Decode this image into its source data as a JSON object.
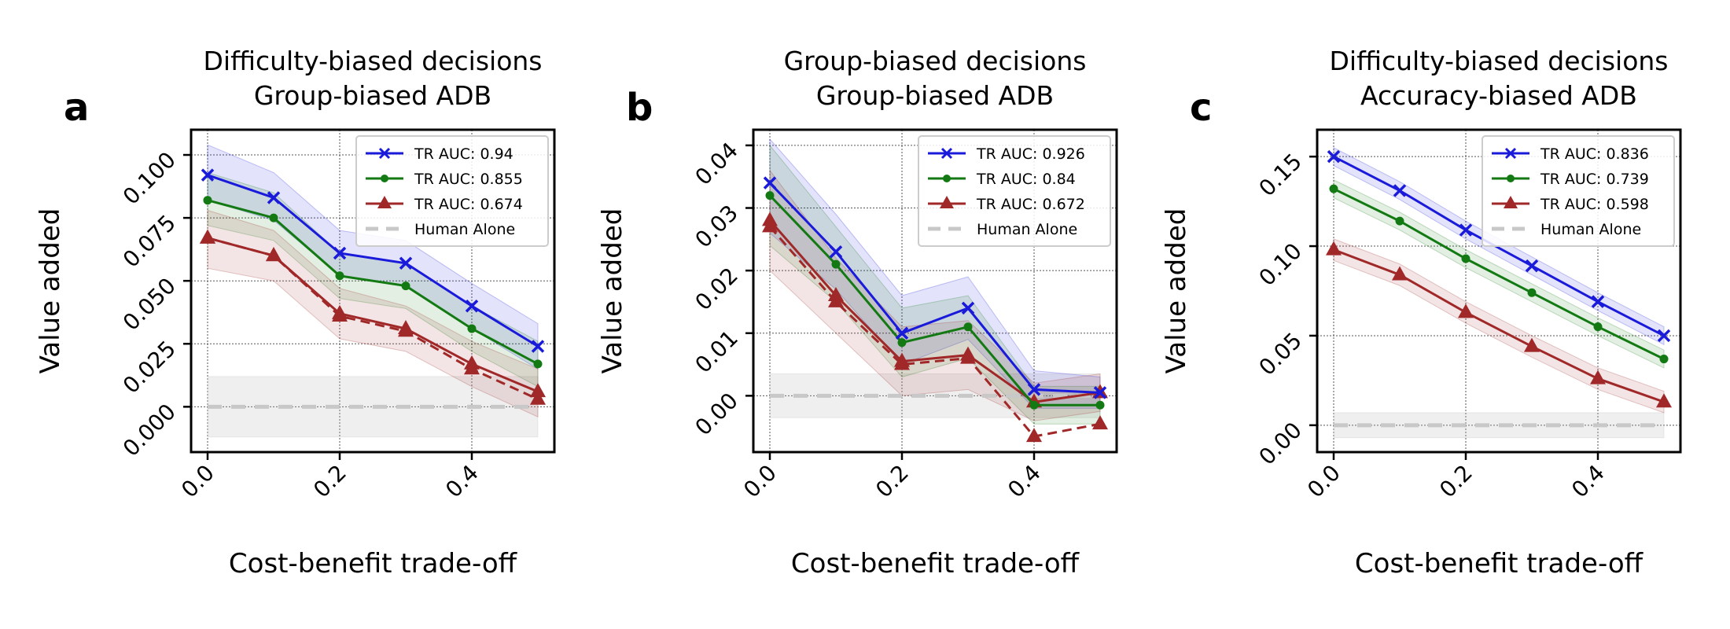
{
  "figure": {
    "xlabel": "Cost-benefit trade-off",
    "ylabel": "Value added",
    "colors": {
      "s0": "#1a1adb",
      "s1": "#137a13",
      "s2": "#a02828",
      "human": "#c8c8c8",
      "grid": "#555555"
    }
  },
  "chart_data": [
    {
      "type": "line",
      "panel_label": "a",
      "title_line1": "Difficulty-biased decisions",
      "title_line2": "Group-biased ADB",
      "xlabel": "Cost-benefit trade-off",
      "ylabel": "Value added",
      "xlim": [
        -0.025,
        0.525
      ],
      "ylim": [
        -0.018,
        0.11
      ],
      "xticks": [
        0.0,
        0.2,
        0.4
      ],
      "xtick_labels": [
        "0.0",
        "0.2",
        "0.4"
      ],
      "yticks": [
        0.0,
        0.025,
        0.05,
        0.075,
        0.1
      ],
      "ytick_labels": [
        "0.000",
        "0.025",
        "0.050",
        "0.075",
        "0.100"
      ],
      "x": [
        0.0,
        0.1,
        0.2,
        0.3,
        0.4,
        0.5
      ],
      "series": [
        {
          "name": "TR AUC: 0.94",
          "marker": "x",
          "values": [
            0.092,
            0.083,
            0.061,
            0.057,
            0.04,
            0.024
          ],
          "lower": [
            0.082,
            0.074,
            0.052,
            0.048,
            0.031,
            0.015
          ],
          "upper": [
            0.104,
            0.093,
            0.07,
            0.066,
            0.049,
            0.033
          ]
        },
        {
          "name": "TR AUC: 0.855",
          "marker": "dot",
          "values": [
            0.082,
            0.075,
            0.052,
            0.048,
            0.031,
            0.017
          ],
          "lower": [
            0.072,
            0.066,
            0.043,
            0.039,
            0.022,
            0.008
          ],
          "upper": [
            0.093,
            0.085,
            0.061,
            0.057,
            0.04,
            0.026
          ]
        },
        {
          "name": "TR AUC: 0.674",
          "marker": "triangle",
          "values": [
            0.067,
            0.06,
            0.037,
            0.031,
            0.017,
            0.006
          ],
          "lower": [
            0.055,
            0.05,
            0.027,
            0.022,
            0.008,
            -0.004
          ],
          "upper": [
            0.078,
            0.07,
            0.047,
            0.04,
            0.026,
            0.015
          ],
          "dashed": [
            0.067,
            0.06,
            0.036,
            0.03,
            0.015,
            0.003
          ]
        },
        {
          "name": "Human Alone",
          "values": [
            0.0,
            0.0,
            0.0,
            0.0,
            0.0,
            0.0
          ],
          "lower": [
            -0.012,
            -0.012,
            -0.012,
            -0.012,
            -0.012,
            -0.012
          ],
          "upper": [
            0.012,
            0.012,
            0.012,
            0.012,
            0.012,
            0.012
          ]
        }
      ]
    },
    {
      "type": "line",
      "panel_label": "b",
      "title_line1": "Group-biased decisions",
      "title_line2": "Group-biased ADB",
      "xlabel": "Cost-benefit trade-off",
      "ylabel": "Value added",
      "xlim": [
        -0.025,
        0.525
      ],
      "ylim": [
        -0.009,
        0.0425
      ],
      "xticks": [
        0.0,
        0.2,
        0.4
      ],
      "xtick_labels": [
        "0.0",
        "0.2",
        "0.4"
      ],
      "yticks": [
        0.0,
        0.01,
        0.02,
        0.03,
        0.04
      ],
      "ytick_labels": [
        "0.00",
        "0.01",
        "0.02",
        "0.03",
        "0.04"
      ],
      "x": [
        0.0,
        0.1,
        0.2,
        0.3,
        0.4,
        0.5
      ],
      "series": [
        {
          "name": "TR AUC: 0.926",
          "marker": "x",
          "values": [
            0.034,
            0.023,
            0.01,
            0.014,
            0.001,
            0.0005
          ],
          "lower": [
            0.026,
            0.017,
            0.005,
            0.009,
            -0.002,
            -0.002
          ],
          "upper": [
            0.041,
            0.029,
            0.016,
            0.019,
            0.004,
            0.003
          ]
        },
        {
          "name": "TR AUC: 0.84",
          "marker": "dot",
          "values": [
            0.032,
            0.021,
            0.0085,
            0.011,
            -0.0015,
            -0.0015
          ],
          "lower": [
            0.024,
            0.015,
            0.003,
            0.006,
            -0.0045,
            -0.0045
          ],
          "upper": [
            0.04,
            0.027,
            0.014,
            0.016,
            0.0015,
            0.0015
          ]
        },
        {
          "name": "TR AUC: 0.672",
          "marker": "triangle",
          "values": [
            0.028,
            0.016,
            0.0055,
            0.0065,
            -0.001,
            0.0005
          ],
          "lower": [
            0.02,
            0.01,
            0.0,
            0.001,
            -0.004,
            -0.0025
          ],
          "upper": [
            0.036,
            0.022,
            0.011,
            0.012,
            0.002,
            0.0035
          ],
          "dashed": [
            0.027,
            0.015,
            0.005,
            0.006,
            -0.0065,
            -0.0045
          ]
        },
        {
          "name": "Human Alone",
          "values": [
            0.0,
            0.0,
            0.0,
            0.0,
            0.0,
            0.0
          ],
          "lower": [
            -0.0035,
            -0.0035,
            -0.0035,
            -0.0035,
            -0.0035,
            -0.0035
          ],
          "upper": [
            0.0035,
            0.0035,
            0.0035,
            0.0035,
            0.0035,
            0.0035
          ]
        }
      ]
    },
    {
      "type": "line",
      "panel_label": "c",
      "title_line1": "Difficulty-biased decisions",
      "title_line2": "Accuracy-biased ADB",
      "xlabel": "Cost-benefit trade-off",
      "ylabel": "Value added",
      "xlim": [
        -0.025,
        0.525
      ],
      "ylim": [
        -0.015,
        0.165
      ],
      "xticks": [
        0.0,
        0.2,
        0.4
      ],
      "xtick_labels": [
        "0.0",
        "0.2",
        "0.4"
      ],
      "yticks": [
        0.0,
        0.05,
        0.1,
        0.15
      ],
      "ytick_labels": [
        "0.00",
        "0.05",
        "0.10",
        "0.15"
      ],
      "x": [
        0.0,
        0.1,
        0.2,
        0.3,
        0.4,
        0.5
      ],
      "series": [
        {
          "name": "TR AUC: 0.836",
          "marker": "x",
          "values": [
            0.15,
            0.131,
            0.109,
            0.089,
            0.069,
            0.05
          ],
          "lower": [
            0.145,
            0.126,
            0.104,
            0.084,
            0.064,
            0.045
          ],
          "upper": [
            0.155,
            0.136,
            0.114,
            0.094,
            0.074,
            0.055
          ]
        },
        {
          "name": "TR AUC: 0.739",
          "marker": "dot",
          "values": [
            0.132,
            0.114,
            0.093,
            0.074,
            0.055,
            0.037
          ],
          "lower": [
            0.127,
            0.109,
            0.088,
            0.069,
            0.05,
            0.032
          ],
          "upper": [
            0.137,
            0.119,
            0.098,
            0.079,
            0.06,
            0.042
          ]
        },
        {
          "name": "TR AUC: 0.598",
          "marker": "triangle",
          "values": [
            0.098,
            0.084,
            0.063,
            0.044,
            0.026,
            0.013
          ],
          "lower": [
            0.092,
            0.078,
            0.057,
            0.038,
            0.02,
            0.007
          ],
          "upper": [
            0.104,
            0.09,
            0.069,
            0.05,
            0.032,
            0.019
          ]
        },
        {
          "name": "Human Alone",
          "values": [
            0.0,
            0.0,
            0.0,
            0.0,
            0.0,
            0.0
          ],
          "lower": [
            -0.007,
            -0.007,
            -0.007,
            -0.007,
            -0.007,
            -0.007
          ],
          "upper": [
            0.007,
            0.007,
            0.007,
            0.007,
            0.007,
            0.007
          ]
        }
      ]
    }
  ]
}
